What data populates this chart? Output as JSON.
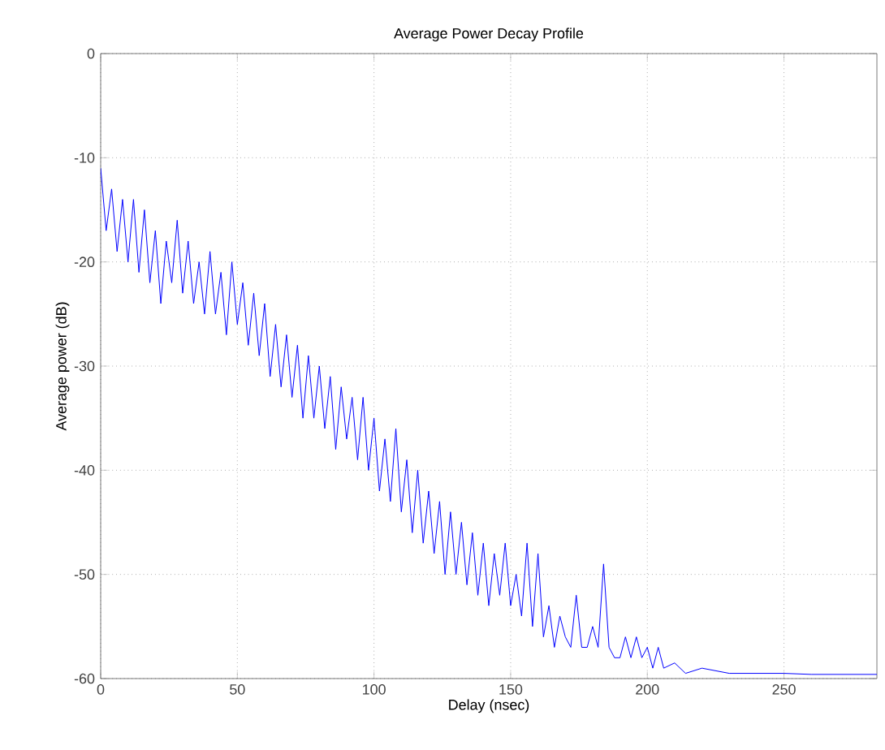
{
  "chart_data": {
    "type": "line",
    "title": "Average Power Decay Profile",
    "xlabel": "Delay (nsec)",
    "ylabel": "Average power (dB)",
    "xlim": [
      0,
      284
    ],
    "ylim": [
      -60,
      0
    ],
    "xticks": [
      0,
      50,
      100,
      150,
      200,
      250
    ],
    "yticks": [
      -60,
      -50,
      -40,
      -30,
      -20,
      -10,
      0
    ],
    "grid": true,
    "marker": "none",
    "line_style": "solid",
    "series": [
      {
        "color": "#0000ff",
        "x": [
          0,
          2,
          4,
          6,
          8,
          10,
          12,
          14,
          16,
          18,
          20,
          22,
          24,
          26,
          28,
          30,
          32,
          34,
          36,
          38,
          40,
          42,
          44,
          46,
          48,
          50,
          52,
          54,
          56,
          58,
          60,
          62,
          64,
          66,
          68,
          70,
          72,
          74,
          76,
          78,
          80,
          82,
          84,
          86,
          88,
          90,
          92,
          94,
          96,
          98,
          100,
          102,
          104,
          106,
          108,
          110,
          112,
          114,
          116,
          118,
          120,
          122,
          124,
          126,
          128,
          130,
          132,
          134,
          136,
          138,
          140,
          142,
          144,
          146,
          148,
          150,
          152,
          154,
          156,
          158,
          160,
          162,
          164,
          166,
          168,
          170,
          172,
          174,
          176,
          178,
          180,
          182,
          184,
          186,
          188,
          190,
          192,
          194,
          196,
          198,
          200,
          202,
          204,
          206,
          210,
          214,
          220,
          230,
          240,
          250,
          260,
          270,
          284
        ],
        "values": [
          -11,
          -17,
          -13,
          -19,
          -14,
          -20,
          -14,
          -21,
          -15,
          -22,
          -17,
          -24,
          -18,
          -22,
          -16,
          -23,
          -18,
          -24,
          -20,
          -25,
          -19,
          -25,
          -21,
          -27,
          -20,
          -26,
          -22,
          -28,
          -23,
          -29,
          -24,
          -31,
          -26,
          -32,
          -27,
          -33,
          -28,
          -35,
          -29,
          -35,
          -30,
          -36,
          -31,
          -38,
          -32,
          -37,
          -33,
          -39,
          -33,
          -40,
          -35,
          -42,
          -37,
          -43,
          -36,
          -44,
          -39,
          -46,
          -40,
          -47,
          -42,
          -48,
          -43,
          -50,
          -44,
          -50,
          -45,
          -51,
          -46,
          -52,
          -47,
          -53,
          -48,
          -52,
          -47,
          -53,
          -50,
          -54,
          -47,
          -55,
          -48,
          -56,
          -53,
          -57,
          -54,
          -56,
          -57,
          -52,
          -57,
          -57,
          -55,
          -57,
          -49,
          -57,
          -58,
          -58,
          -56,
          -58,
          -56,
          -58,
          -57,
          -59,
          -57,
          -59,
          -58.5,
          -59.5,
          -59,
          -59.5,
          -59.5,
          -59.5,
          -59.6,
          -59.6,
          -59.6
        ]
      }
    ]
  }
}
